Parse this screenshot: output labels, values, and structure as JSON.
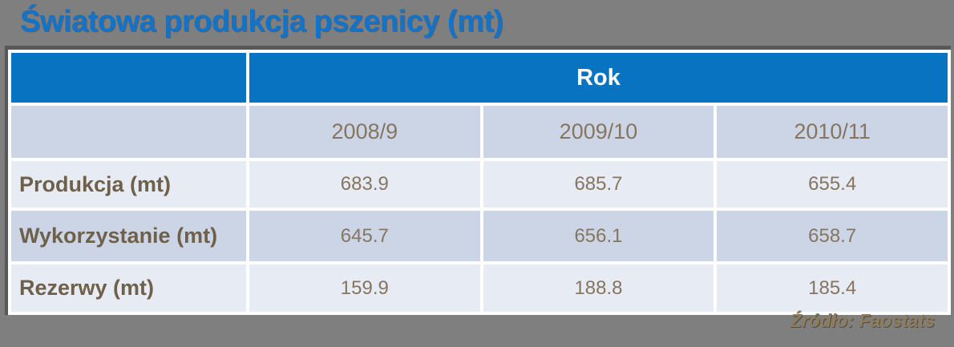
{
  "title": "Światowa produkcja pszenicy (mt)",
  "table": {
    "year_header": "Rok",
    "columns": [
      "2008/9",
      "2009/10",
      "2010/11"
    ],
    "rows": [
      {
        "label": "Produkcja (mt)",
        "values": [
          "683.9",
          "685.7",
          "655.4"
        ]
      },
      {
        "label": "Wykorzystanie (mt)",
        "values": [
          "645.7",
          "656.1",
          "658.7"
        ]
      },
      {
        "label": "Rezerwy (mt)",
        "values": [
          "159.9",
          "188.8",
          "185.4"
        ]
      }
    ]
  },
  "source": "Źródło: Faostats",
  "colors": {
    "page_background": "#7f7f7f",
    "title_blue": "#1273c8",
    "header_blue": "#0873c1",
    "row_dark": "#ccd5e5",
    "row_light": "#e7ebf3",
    "border_dark": "#585858",
    "label_text": "#6e604b",
    "value_text": "#867560",
    "source_text": "#8d7c5e"
  },
  "chart_data": {
    "type": "table",
    "title": "Światowa produkcja pszenicy (mt)",
    "column_group_header": "Rok",
    "categories": [
      "2008/9",
      "2009/10",
      "2010/11"
    ],
    "series": [
      {
        "name": "Produkcja (mt)",
        "values": [
          683.9,
          685.7,
          655.4
        ]
      },
      {
        "name": "Wykorzystanie (mt)",
        "values": [
          645.7,
          656.1,
          658.7
        ]
      },
      {
        "name": "Rezerwy (mt)",
        "values": [
          159.9,
          188.8,
          185.4
        ]
      }
    ],
    "source": "Źródło: Faostats",
    "layout_hints": {
      "header_row_color": "blue",
      "banded_rows": true,
      "values_unit": "mt"
    }
  }
}
